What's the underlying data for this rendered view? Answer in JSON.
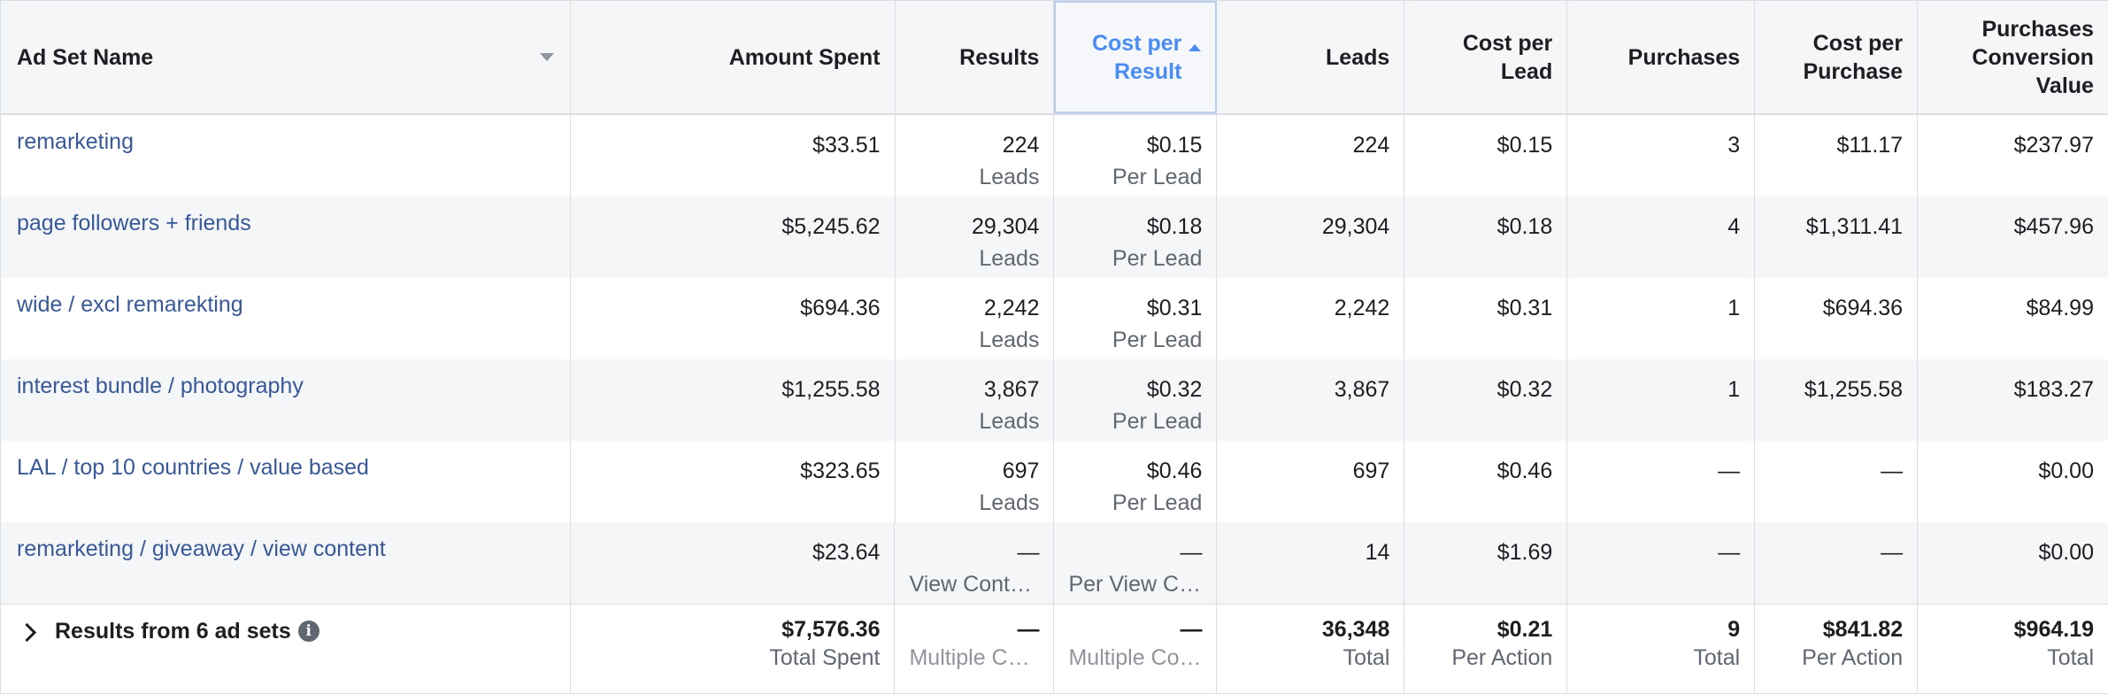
{
  "headers": [
    "Ad Set Name",
    "Amount Spent",
    "Results",
    "Cost per Result",
    "Leads",
    "Cost per Lead",
    "Purchases",
    "Cost per Purchase",
    "Purchases Conversion Value"
  ],
  "header_lines": {
    "cost_per_result": [
      "Cost per",
      "Result"
    ],
    "cost_per_lead": [
      "Cost per",
      "Lead"
    ],
    "cost_per_purchase": [
      "Cost per",
      "Purchase"
    ],
    "purchases_conversion_value": [
      "Purchases",
      "Conversion",
      "Value"
    ]
  },
  "rows": [
    {
      "name": "remarketing",
      "spent": "$33.51",
      "results": "224",
      "results_sub": "Leads",
      "cpr": "$0.15",
      "cpr_sub": "Per Lead",
      "leads": "224",
      "cpl": "$0.15",
      "purchases": "3",
      "cpp": "$11.17",
      "pcv": "$237.97"
    },
    {
      "name": "page followers + friends",
      "spent": "$5,245.62",
      "results": "29,304",
      "results_sub": "Leads",
      "cpr": "$0.18",
      "cpr_sub": "Per Lead",
      "leads": "29,304",
      "cpl": "$0.18",
      "purchases": "4",
      "cpp": "$1,311.41",
      "pcv": "$457.96"
    },
    {
      "name": "wide / excl remarekting",
      "spent": "$694.36",
      "results": "2,242",
      "results_sub": "Leads",
      "cpr": "$0.31",
      "cpr_sub": "Per Lead",
      "leads": "2,242",
      "cpl": "$0.31",
      "purchases": "1",
      "cpp": "$694.36",
      "pcv": "$84.99"
    },
    {
      "name": "interest bundle / photography",
      "spent": "$1,255.58",
      "results": "3,867",
      "results_sub": "Leads",
      "cpr": "$0.32",
      "cpr_sub": "Per Lead",
      "leads": "3,867",
      "cpl": "$0.32",
      "purchases": "1",
      "cpp": "$1,255.58",
      "pcv": "$183.27"
    },
    {
      "name": "LAL / top 10 countries / value based",
      "spent": "$323.65",
      "results": "697",
      "results_sub": "Leads",
      "cpr": "$0.46",
      "cpr_sub": "Per Lead",
      "leads": "697",
      "cpl": "$0.46",
      "purchases": "—",
      "cpp": "—",
      "pcv": "$0.00"
    },
    {
      "name": "remarketing / giveaway / view content",
      "spent": "$23.64",
      "results": "—",
      "results_sub": "View Content",
      "cpr": "—",
      "cpr_sub": "Per View Co...",
      "leads": "14",
      "cpl": "$1.69",
      "purchases": "—",
      "cpp": "—",
      "pcv": "$0.00"
    }
  ],
  "footer": {
    "title": "Results from 6 ad sets",
    "info_icon": "info-icon",
    "spent": "$7,576.36",
    "spent_sub": "Total Spent",
    "results": "—",
    "results_sub": "Multiple Con...",
    "cpr": "—",
    "cpr_sub": "Multiple Conv...",
    "leads": "36,348",
    "leads_sub": "Total",
    "cpl": "$0.21",
    "cpl_sub": "Per Action",
    "purchases": "9",
    "purchases_sub": "Total",
    "cpp": "$841.82",
    "cpp_sub": "Per Action",
    "pcv": "$964.19",
    "pcv_sub": "Total"
  },
  "colors": {
    "link": "#385898",
    "sorted_header": "#4a8cf3",
    "alt_row": "#f5f6f7",
    "border": "#dadde1"
  }
}
